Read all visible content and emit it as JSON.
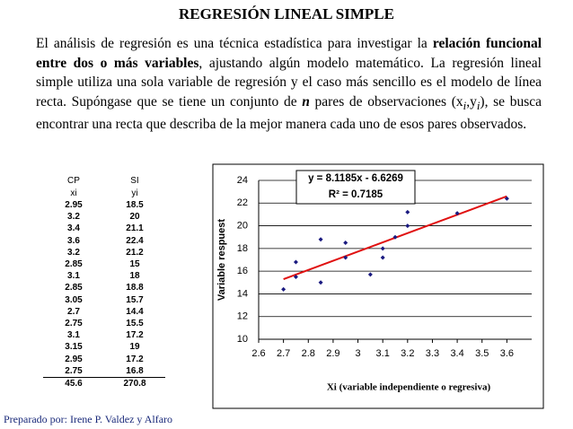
{
  "title": "REGRESIÓN LINEAL SIMPLE",
  "paragraph": [
    "El análisis de regresión es una técnica estadística para investigar la ",
    "relación funcional entre dos o más variables",
    ", ajustando algún modelo matemático. La regresión lineal simple utiliza una sola variable de regresión y el caso más sencillo es el modelo de línea recta. Supóngase que se tiene un conjunto de ",
    "n",
    " pares de observaciones (x",
    "i",
    ",y",
    "i",
    "), se busca encontrar una recta que describa de la mejor manera cada uno de esos pares observados."
  ],
  "table": {
    "header": [
      [
        "CP",
        "SI"
      ],
      [
        "xi",
        "yi"
      ]
    ],
    "rows": [
      [
        2.95,
        18.5
      ],
      [
        3.2,
        20
      ],
      [
        3.4,
        21.1
      ],
      [
        3.6,
        22.4
      ],
      [
        3.2,
        21.2
      ],
      [
        2.85,
        15
      ],
      [
        3.1,
        18
      ],
      [
        2.85,
        18.8
      ],
      [
        3.05,
        15.7
      ],
      [
        2.7,
        14.4
      ],
      [
        2.75,
        15.5
      ],
      [
        3.1,
        17.2
      ],
      [
        3.15,
        19
      ],
      [
        2.95,
        17.2
      ],
      [
        2.75,
        16.8
      ]
    ],
    "total": [
      45.6,
      270.8
    ]
  },
  "footer": "Preparado por: Irene P. Valdez y Alfaro",
  "chart_data": {
    "type": "scatter",
    "x_label": "Xi (variable independiente o regresiva)",
    "y_label": "Variable respuest",
    "annotations": [
      "y = 8.1185x - 6.6269",
      "R² = 0.7185"
    ],
    "x": [
      2.95,
      3.2,
      3.4,
      3.6,
      3.2,
      2.85,
      3.1,
      2.85,
      3.05,
      2.7,
      2.75,
      3.1,
      3.15,
      2.95,
      2.75
    ],
    "y": [
      18.5,
      20,
      21.1,
      22.4,
      21.2,
      15,
      18,
      18.8,
      15.7,
      14.4,
      15.5,
      17.2,
      19,
      17.2,
      16.8
    ],
    "color": "#1a1a80",
    "trendline": {
      "slope": 8.1185,
      "intercept": -6.6269,
      "color": "#e01010"
    },
    "xlim": [
      2.6,
      3.7
    ],
    "xticks": [
      2.6,
      2.7,
      2.8,
      2.9,
      3,
      3.1,
      3.2,
      3.3,
      3.4,
      3.5,
      3.6
    ],
    "ylim": [
      10,
      24
    ],
    "yticks": [
      10,
      12,
      14,
      16,
      18,
      20,
      22,
      24
    ],
    "grid": true
  }
}
